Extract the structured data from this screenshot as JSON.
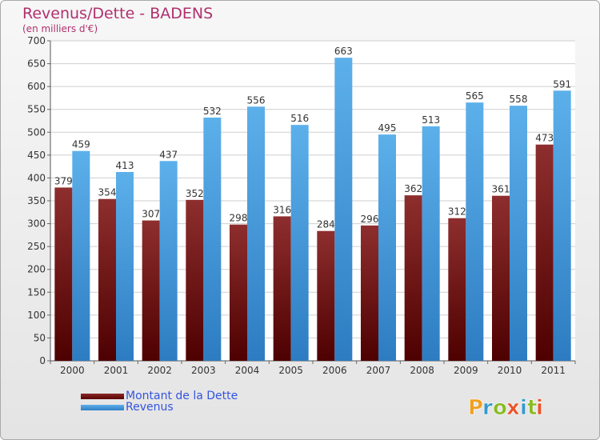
{
  "chart_data": {
    "type": "bar",
    "title": "Revenus/Dette - BADENS",
    "subtitle": "(en milliers d'€)",
    "categories": [
      "2000",
      "2001",
      "2002",
      "2003",
      "2004",
      "2005",
      "2006",
      "2007",
      "2008",
      "2009",
      "2010",
      "2011"
    ],
    "series": [
      {
        "name": "Montant de la Dette",
        "color": "#7a1010",
        "values": [
          379,
          354,
          307,
          352,
          298,
          316,
          284,
          296,
          362,
          312,
          361,
          473
        ]
      },
      {
        "name": "Revenus",
        "color": "#4a9fe0",
        "values": [
          459,
          413,
          437,
          532,
          556,
          516,
          663,
          495,
          513,
          565,
          558,
          591
        ]
      }
    ],
    "ylim": [
      0,
      700
    ],
    "yticks": [
      0,
      50,
      100,
      150,
      200,
      250,
      300,
      350,
      400,
      450,
      500,
      550,
      600,
      650,
      700
    ],
    "grid": true,
    "legend_position": "bottom-left",
    "xlabel": "",
    "ylabel": ""
  },
  "legend": {
    "debt_label": "Montant de la Dette",
    "revenue_label": "Revenus"
  },
  "logo": {
    "text": "Proxiti",
    "letters": [
      "P",
      "r",
      "o",
      "x",
      "i",
      "t",
      "i"
    ],
    "colors": [
      "#f0a020",
      "#3399cc",
      "#88bb22",
      "#e8542a",
      "#3399cc",
      "#88bb22",
      "#e8542a"
    ]
  }
}
